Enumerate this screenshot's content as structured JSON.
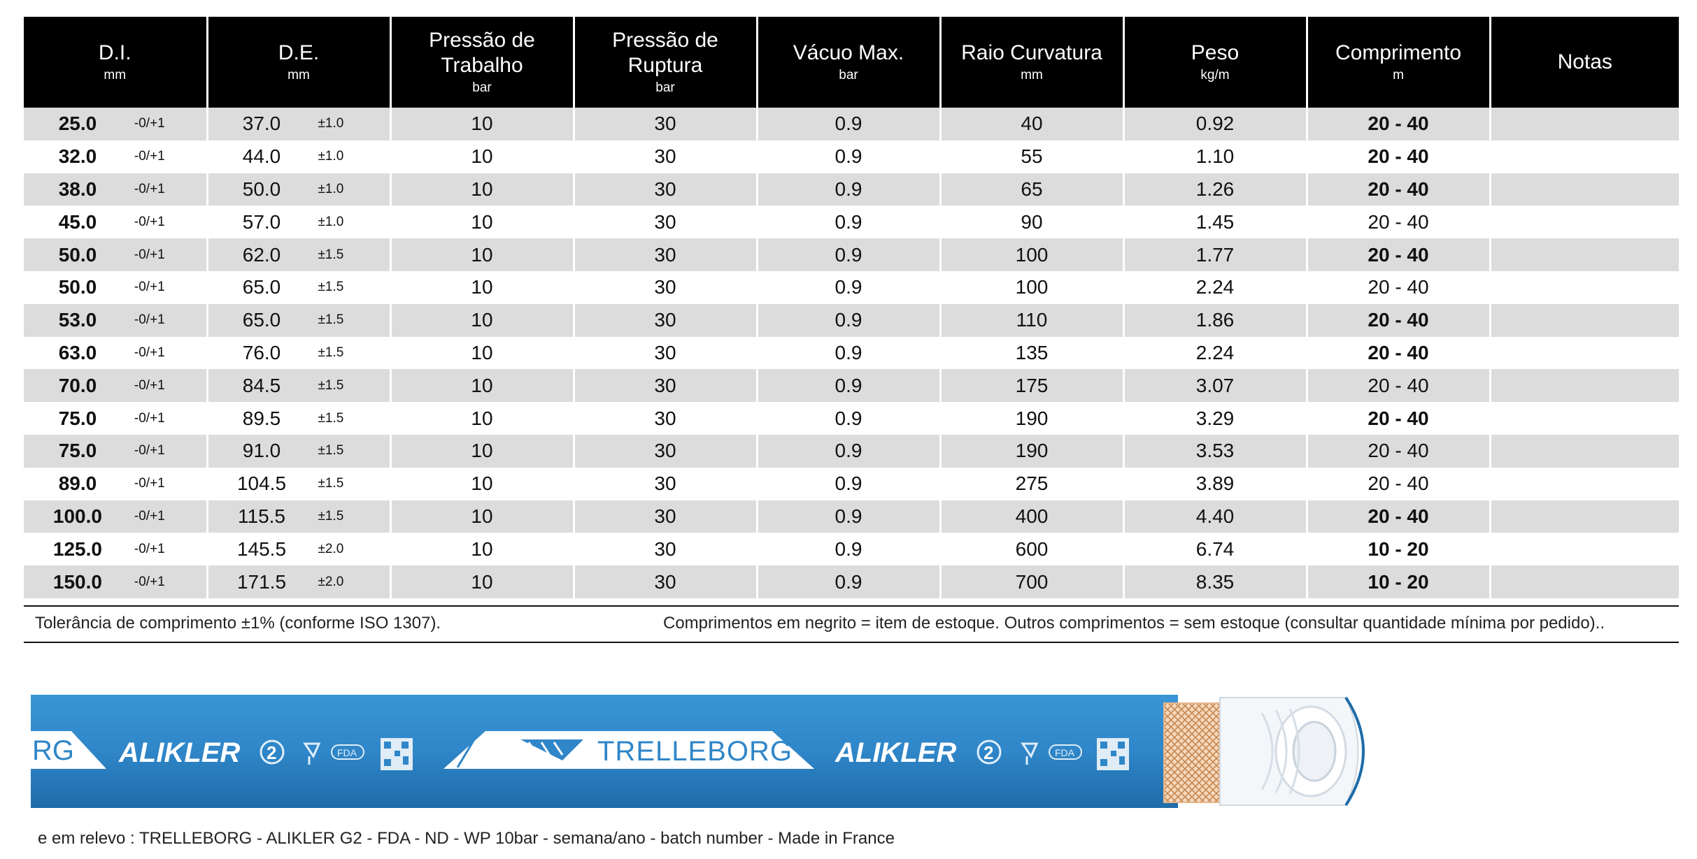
{
  "table": {
    "headers": [
      {
        "title": "D.I.",
        "unit": "mm"
      },
      {
        "title": "D.E.",
        "unit": "mm"
      },
      {
        "title": "Pressão de Trabalho",
        "unit": "bar"
      },
      {
        "title": "Pressão de Ruptura",
        "unit": "bar"
      },
      {
        "title": "Vácuo Max.",
        "unit": "bar"
      },
      {
        "title": "Raio Curvatura",
        "unit": "mm"
      },
      {
        "title": "Peso",
        "unit": "kg/m"
      },
      {
        "title": "Comprimento",
        "unit": "m"
      },
      {
        "title": "Notas",
        "unit": ""
      }
    ],
    "rows": [
      {
        "di": "25.0",
        "di_tol": "-0/+1",
        "de": "37.0",
        "de_tol": "±1.0",
        "wp": "10",
        "bp": "30",
        "vac": "0.9",
        "radius": "40",
        "weight": "0.92",
        "length": "20 - 40",
        "stock": true,
        "notes": ""
      },
      {
        "di": "32.0",
        "di_tol": "-0/+1",
        "de": "44.0",
        "de_tol": "±1.0",
        "wp": "10",
        "bp": "30",
        "vac": "0.9",
        "radius": "55",
        "weight": "1.10",
        "length": "20 - 40",
        "stock": true,
        "notes": ""
      },
      {
        "di": "38.0",
        "di_tol": "-0/+1",
        "de": "50.0",
        "de_tol": "±1.0",
        "wp": "10",
        "bp": "30",
        "vac": "0.9",
        "radius": "65",
        "weight": "1.26",
        "length": "20 - 40",
        "stock": true,
        "notes": ""
      },
      {
        "di": "45.0",
        "di_tol": "-0/+1",
        "de": "57.0",
        "de_tol": "±1.0",
        "wp": "10",
        "bp": "30",
        "vac": "0.9",
        "radius": "90",
        "weight": "1.45",
        "length": "20 - 40",
        "stock": false,
        "notes": ""
      },
      {
        "di": "50.0",
        "di_tol": "-0/+1",
        "de": "62.0",
        "de_tol": "±1.5",
        "wp": "10",
        "bp": "30",
        "vac": "0.9",
        "radius": "100",
        "weight": "1.77",
        "length": "20 - 40",
        "stock": true,
        "notes": ""
      },
      {
        "di": "50.0",
        "di_tol": "-0/+1",
        "de": "65.0",
        "de_tol": "±1.5",
        "wp": "10",
        "bp": "30",
        "vac": "0.9",
        "radius": "100",
        "weight": "2.24",
        "length": "20 - 40",
        "stock": false,
        "notes": ""
      },
      {
        "di": "53.0",
        "di_tol": "-0/+1",
        "de": "65.0",
        "de_tol": "±1.5",
        "wp": "10",
        "bp": "30",
        "vac": "0.9",
        "radius": "110",
        "weight": "1.86",
        "length": "20 - 40",
        "stock": true,
        "notes": ""
      },
      {
        "di": "63.0",
        "di_tol": "-0/+1",
        "de": "76.0",
        "de_tol": "±1.5",
        "wp": "10",
        "bp": "30",
        "vac": "0.9",
        "radius": "135",
        "weight": "2.24",
        "length": "20 - 40",
        "stock": true,
        "notes": ""
      },
      {
        "di": "70.0",
        "di_tol": "-0/+1",
        "de": "84.5",
        "de_tol": "±1.5",
        "wp": "10",
        "bp": "30",
        "vac": "0.9",
        "radius": "175",
        "weight": "3.07",
        "length": "20 - 40",
        "stock": false,
        "notes": ""
      },
      {
        "di": "75.0",
        "di_tol": "-0/+1",
        "de": "89.5",
        "de_tol": "±1.5",
        "wp": "10",
        "bp": "30",
        "vac": "0.9",
        "radius": "190",
        "weight": "3.29",
        "length": "20 - 40",
        "stock": true,
        "notes": ""
      },
      {
        "di": "75.0",
        "di_tol": "-0/+1",
        "de": "91.0",
        "de_tol": "±1.5",
        "wp": "10",
        "bp": "30",
        "vac": "0.9",
        "radius": "190",
        "weight": "3.53",
        "length": "20 - 40",
        "stock": false,
        "notes": ""
      },
      {
        "di": "89.0",
        "di_tol": "-0/+1",
        "de": "104.5",
        "de_tol": "±1.5",
        "wp": "10",
        "bp": "30",
        "vac": "0.9",
        "radius": "275",
        "weight": "3.89",
        "length": "20 - 40",
        "stock": false,
        "notes": ""
      },
      {
        "di": "100.0",
        "di_tol": "-0/+1",
        "de": "115.5",
        "de_tol": "±1.5",
        "wp": "10",
        "bp": "30",
        "vac": "0.9",
        "radius": "400",
        "weight": "4.40",
        "length": "20 - 40",
        "stock": true,
        "notes": ""
      },
      {
        "di": "125.0",
        "di_tol": "-0/+1",
        "de": "145.5",
        "de_tol": "±2.0",
        "wp": "10",
        "bp": "30",
        "vac": "0.9",
        "radius": "600",
        "weight": "6.74",
        "length": "10 - 20",
        "stock": true,
        "notes": ""
      },
      {
        "di": "150.0",
        "di_tol": "-0/+1",
        "de": "171.5",
        "de_tol": "±2.0",
        "wp": "10",
        "bp": "30",
        "vac": "0.9",
        "radius": "700",
        "weight": "8.35",
        "length": "10 - 20",
        "stock": true,
        "notes": ""
      }
    ]
  },
  "footnotes": {
    "left": "Tolerância de comprimento ±1% (conforme ISO 1307).",
    "right": "Comprimentos em negrito = item de estoque. Outros comprimentos = sem estoque (consultar quantidade mínima por pedido).."
  },
  "hose": {
    "brand": "TRELLEBORG",
    "product": "ALIKLER",
    "product_tail": "RG",
    "fda": "FDA",
    "color_blue": "#2f86c8",
    "color_braid": "#d9945a"
  },
  "marking": "e em relevo : TRELLEBORG - ALIKLER G2 - FDA - ND - WP 10bar - semana/ano - batch number - Made in France"
}
